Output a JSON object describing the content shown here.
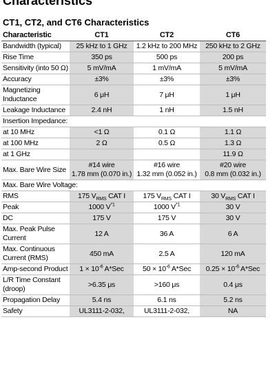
{
  "header": {
    "title": "Characteristics",
    "subtitle": "CT1, CT2, and CT6 Characteristics"
  },
  "table": {
    "columns": [
      "Characteristic",
      "CT1",
      "CT2",
      "CT6"
    ],
    "shaded_columns": [
      1,
      3
    ],
    "rows": [
      {
        "label": "Bandwidth (typical)",
        "cells": [
          "25 kHz to 1 GHz",
          "1.2 kHz to 200 MHz",
          "250 kHz to 2 GHz"
        ]
      },
      {
        "label": "Rise Time",
        "cells": [
          "350 ps",
          "500 ps",
          "200 ps"
        ]
      },
      {
        "label": "Sensitivity (into 50 Ω)",
        "cells": [
          "5 mV/mA",
          "1 mV/mA",
          "5 mV/mA"
        ]
      },
      {
        "label": "Accuracy",
        "cells": [
          "±3%",
          "±3%",
          "±3%"
        ]
      },
      {
        "label": "Magnetizing Inductance",
        "cells": [
          "6 μH",
          "7 μH",
          "1 μH"
        ]
      },
      {
        "label": "Leakage Inductance",
        "cells": [
          "2.4 nH",
          "1 nH",
          "1.5 nH"
        ]
      },
      {
        "label": "Insertion Impedance:"
      },
      {
        "label": "at 10 MHz",
        "cells": [
          "<1 Ω",
          "0.1 Ω",
          "1.1 Ω"
        ]
      },
      {
        "label": "at 100 MHz",
        "cells": [
          "2 Ω",
          "0.5 Ω",
          "1.3 Ω"
        ]
      },
      {
        "label": "at 1 GHz",
        "cells": [
          null,
          null,
          "11.9 Ω"
        ]
      },
      {
        "label": "Max. Bare Wire Size",
        "cells": [
          {
            "lines": [
              "#14 wire",
              "1.78 mm (0.070 in.)"
            ]
          },
          {
            "lines": [
              "#16 wire",
              "1.32 mm (0.052 in.)"
            ]
          },
          {
            "lines": [
              "#20 wire",
              "0.8 mm (0.032 in.)"
            ]
          }
        ]
      },
      {
        "label": "Max. Bare Wire Voltage:"
      },
      {
        "label": "RMS",
        "cells": [
          {
            "parts": [
              {
                "text": "175 V"
              },
              {
                "text": "RMS",
                "style": "sub"
              },
              {
                "text": " CAT I"
              }
            ]
          },
          {
            "parts": [
              {
                "text": "175 V"
              },
              {
                "text": "RMS",
                "style": "sub"
              },
              {
                "text": " CAT I"
              }
            ]
          },
          {
            "parts": [
              {
                "text": "30 V"
              },
              {
                "text": "RMS",
                "style": "sub"
              },
              {
                "text": " CAT I"
              }
            ]
          }
        ]
      },
      {
        "label": "Peak",
        "cells": [
          {
            "parts": [
              {
                "text": "1000 V"
              },
              {
                "text": "*1",
                "style": "sup"
              }
            ]
          },
          {
            "parts": [
              {
                "text": "1000 V"
              },
              {
                "text": "*1",
                "style": "sup"
              }
            ]
          },
          "30 V"
        ]
      },
      {
        "label": "DC",
        "cells": [
          "175 V",
          "175 V",
          "30 V"
        ]
      },
      {
        "label": "Max. Peak Pulse Current",
        "cells": [
          "12 A",
          "36 A",
          "6 A"
        ]
      },
      {
        "label": "Max. Continuous Current (RMS)",
        "cells": [
          "450 mA",
          "2.5 A",
          "120 mA"
        ]
      },
      {
        "label": "Amp-second Product",
        "cells": [
          {
            "parts": [
              {
                "text": "1 × 10"
              },
              {
                "text": "-6",
                "style": "sup"
              },
              {
                "text": " A*Sec"
              }
            ]
          },
          {
            "parts": [
              {
                "text": "50 × 10"
              },
              {
                "text": "-6",
                "style": "sup"
              },
              {
                "text": " A*Sec"
              }
            ]
          },
          {
            "parts": [
              {
                "text": "0.25 × 10"
              },
              {
                "text": "-6",
                "style": "sup"
              },
              {
                "text": " A*Sec"
              }
            ]
          }
        ]
      },
      {
        "label": "L/R Time Constant (droop)",
        "cells": [
          ">6.35 μs",
          ">160 μs",
          "0.4 μs"
        ]
      },
      {
        "label": "Propagation Delay",
        "cells": [
          "5.4 ns",
          "6.1 ns",
          "5.2 ns"
        ]
      },
      {
        "label": "Safety",
        "cells": [
          "UL3111-2-032,",
          "UL3111-2-032,",
          "NA"
        ]
      }
    ]
  }
}
